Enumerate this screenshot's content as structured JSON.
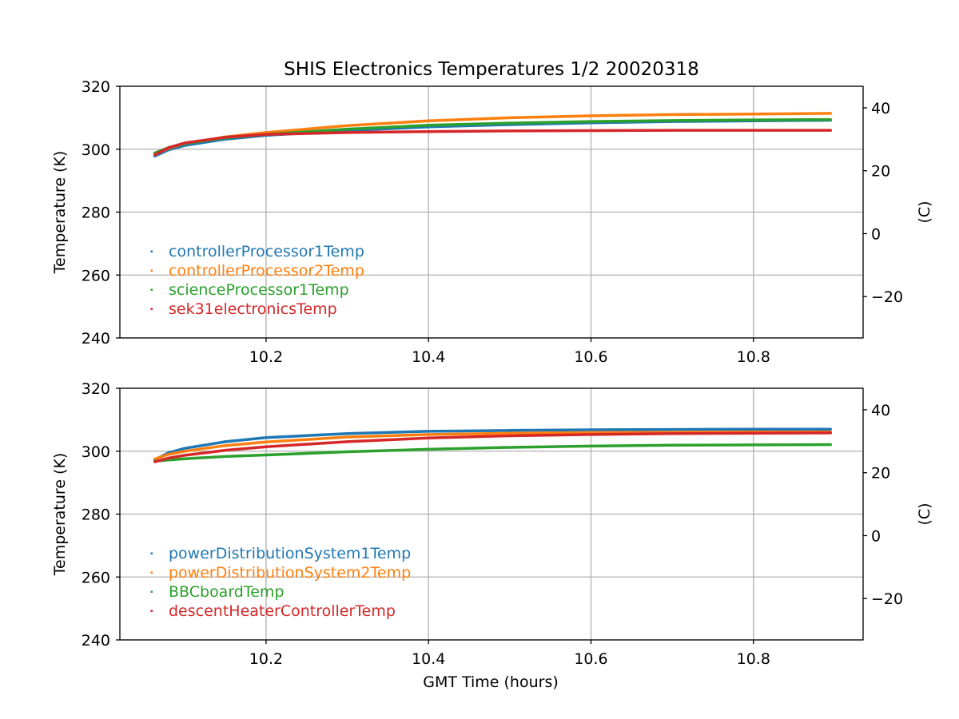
{
  "chart_data": [
    {
      "type": "scatter",
      "title": "SHIS Electronics Temperatures 1/2 20020318",
      "xlabel": "",
      "ylabel": "Temperature (K)",
      "y2label": "(C)",
      "xlim": [
        10.02,
        10.935
      ],
      "ylim": [
        240,
        320
      ],
      "y2lim": [
        -33.15,
        46.85
      ],
      "xticks": [
        "10.2",
        "10.4",
        "10.6",
        "10.8"
      ],
      "yticks": [
        "240",
        "260",
        "280",
        "300",
        "320"
      ],
      "y2ticks": [
        "−20",
        "0",
        "20",
        "40"
      ],
      "grid": true,
      "legend_position": "lower-left",
      "x": [
        10.063,
        10.08,
        10.1,
        10.15,
        10.2,
        10.3,
        10.4,
        10.5,
        10.6,
        10.7,
        10.8,
        10.895
      ],
      "series": [
        {
          "name": "controllerProcessor1Temp",
          "color": "#1f77b4",
          "values": [
            297.8,
            299.8,
            301.2,
            303.2,
            304.4,
            305.9,
            307.1,
            307.8,
            308.4,
            308.8,
            309.0,
            309.2
          ]
        },
        {
          "name": "controllerProcessor2Temp",
          "color": "#ff7f0e",
          "values": [
            298.4,
            300.3,
            301.8,
            303.9,
            305.3,
            307.5,
            309.0,
            310.0,
            310.6,
            311.0,
            311.2,
            311.4
          ]
        },
        {
          "name": "scienceProcessor1Temp",
          "color": "#2ca02c",
          "values": [
            298.8,
            300.5,
            301.8,
            303.6,
            304.7,
            306.4,
            307.6,
            308.3,
            308.8,
            309.1,
            309.3,
            309.4
          ]
        },
        {
          "name": "sek31electronicsTemp",
          "color": "#d62728",
          "values": [
            298.2,
            300.5,
            302.0,
            303.8,
            304.7,
            305.3,
            305.6,
            305.8,
            305.9,
            306.0,
            306.0,
            306.0
          ]
        }
      ]
    },
    {
      "type": "scatter",
      "title": "",
      "xlabel": "GMT Time (hours)",
      "ylabel": "Temperature (K)",
      "y2label": "(C)",
      "xlim": [
        10.02,
        10.935
      ],
      "ylim": [
        240,
        320
      ],
      "y2lim": [
        -33.15,
        46.85
      ],
      "xticks": [
        "10.2",
        "10.4",
        "10.6",
        "10.8"
      ],
      "yticks": [
        "240",
        "260",
        "280",
        "300",
        "320"
      ],
      "y2ticks": [
        "−20",
        "0",
        "20",
        "40"
      ],
      "grid": true,
      "legend_position": "lower-left",
      "x": [
        10.063,
        10.08,
        10.1,
        10.15,
        10.2,
        10.3,
        10.4,
        10.5,
        10.6,
        10.7,
        10.8,
        10.895
      ],
      "series": [
        {
          "name": "powerDistributionSystem1Temp",
          "color": "#1f77b4",
          "values": [
            297.3,
            299.5,
            300.9,
            303.0,
            304.3,
            305.6,
            306.3,
            306.6,
            306.8,
            306.9,
            307.0,
            307.0
          ]
        },
        {
          "name": "powerDistributionSystem2Temp",
          "color": "#ff7f0e",
          "values": [
            297.5,
            299.0,
            300.0,
            301.8,
            302.9,
            304.5,
            305.3,
            305.7,
            305.9,
            306.0,
            306.1,
            306.1
          ]
        },
        {
          "name": "BBCboardTemp",
          "color": "#2ca02c",
          "values": [
            296.8,
            297.2,
            297.6,
            298.3,
            298.8,
            299.8,
            300.6,
            301.2,
            301.6,
            301.9,
            302.0,
            302.1
          ]
        },
        {
          "name": "descentHeaterControllerTemp",
          "color": "#d62728",
          "values": [
            296.6,
            297.8,
            298.7,
            300.3,
            301.4,
            303.0,
            304.2,
            304.9,
            305.3,
            305.6,
            305.7,
            305.8
          ]
        }
      ]
    }
  ]
}
